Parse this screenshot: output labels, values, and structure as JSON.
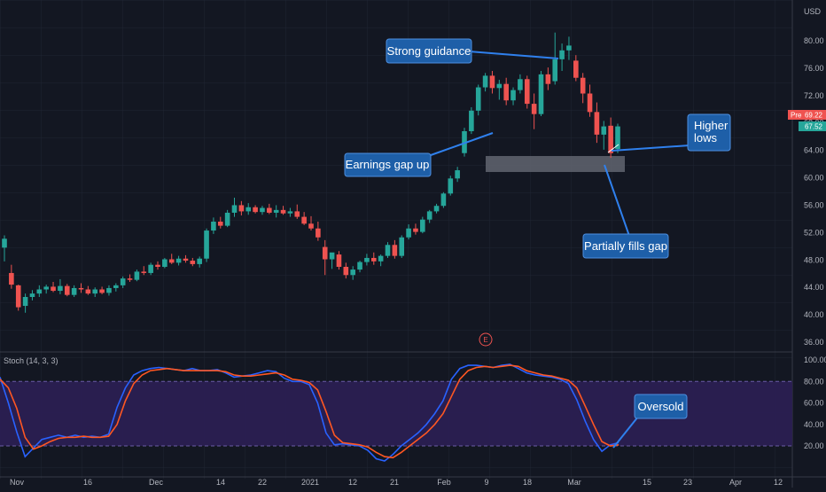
{
  "currency": "USD",
  "chart_data": [
    {
      "type": "candlestick",
      "ylim": [
        34,
        84
      ],
      "yticks": [
        36,
        40,
        44,
        48,
        52,
        56,
        60,
        64,
        68,
        72,
        76,
        80
      ],
      "ytick_labels": [
        "36.00",
        "40.00",
        "44.00",
        "48.00",
        "52.00",
        "56.00",
        "60.00",
        "64.00",
        "68.00",
        "72.00",
        "76.00",
        "80.00"
      ],
      "xtick_labels": [
        "Nov",
        "16",
        "Dec",
        "14",
        "22",
        "2021",
        "12",
        "21",
        "Feb",
        "9",
        "18",
        "Mar",
        "15",
        "23",
        "Apr",
        "12"
      ],
      "price_labels": [
        {
          "tag": "Pre",
          "value": "69.22",
          "color": "#ef5350"
        },
        {
          "value": "67.52",
          "color": "#26a69a"
        }
      ],
      "event_marker": "E",
      "candles": [
        [
          49.8,
          51.6,
          47.8,
          51.1
        ],
        [
          46.1,
          47.3,
          43.8,
          44.4
        ],
        [
          44.3,
          44.4,
          40.6,
          41.1
        ],
        [
          41.3,
          43.1,
          40.3,
          42.6
        ],
        [
          42.6,
          43.6,
          42.1,
          43.1
        ],
        [
          43.1,
          44.3,
          42.6,
          43.7
        ],
        [
          43.7,
          44.4,
          43.1,
          44.1
        ],
        [
          44.1,
          44.8,
          43.3,
          43.5
        ],
        [
          43.5,
          45.2,
          43.0,
          44.2
        ],
        [
          44.2,
          44.5,
          42.7,
          42.9
        ],
        [
          42.9,
          44.3,
          42.6,
          43.9
        ],
        [
          43.9,
          44.6,
          43.2,
          43.7
        ],
        [
          43.7,
          44.2,
          42.9,
          43.1
        ],
        [
          43.1,
          44.0,
          42.6,
          43.7
        ],
        [
          43.7,
          44.1,
          43.0,
          43.2
        ],
        [
          43.2,
          44.3,
          42.8,
          43.9
        ],
        [
          43.9,
          44.6,
          43.4,
          44.3
        ],
        [
          44.3,
          45.6,
          43.9,
          45.3
        ],
        [
          45.3,
          45.9,
          44.8,
          45.1
        ],
        [
          45.1,
          46.6,
          44.9,
          46.3
        ],
        [
          46.3,
          47.1,
          45.8,
          46.1
        ],
        [
          46.1,
          47.6,
          45.8,
          47.3
        ],
        [
          47.3,
          47.8,
          46.6,
          47.0
        ],
        [
          47.0,
          48.3,
          46.8,
          48.1
        ],
        [
          48.1,
          48.9,
          47.4,
          47.6
        ],
        [
          47.6,
          48.6,
          47.2,
          48.2
        ],
        [
          48.2,
          48.7,
          47.6,
          47.9
        ],
        [
          47.9,
          48.3,
          47.1,
          47.4
        ],
        [
          47.4,
          48.5,
          46.9,
          48.2
        ],
        [
          48.2,
          52.6,
          47.7,
          52.3
        ],
        [
          52.3,
          54.2,
          51.8,
          53.6
        ],
        [
          53.6,
          54.3,
          52.6,
          53.0
        ],
        [
          53.0,
          55.3,
          52.8,
          54.9
        ],
        [
          54.9,
          57.1,
          54.3,
          56.0
        ],
        [
          56.0,
          56.6,
          54.5,
          55.1
        ],
        [
          55.1,
          56.3,
          54.6,
          55.7
        ],
        [
          55.7,
          56.0,
          54.8,
          55.0
        ],
        [
          55.0,
          55.9,
          54.6,
          55.6
        ],
        [
          55.6,
          56.2,
          54.7,
          54.9
        ],
        [
          54.9,
          56.0,
          54.2,
          55.3
        ],
        [
          55.3,
          55.9,
          54.6,
          54.8
        ],
        [
          54.8,
          55.6,
          54.3,
          55.1
        ],
        [
          55.1,
          56.1,
          54.0,
          54.3
        ],
        [
          54.3,
          55.0,
          53.1,
          53.3
        ],
        [
          53.3,
          54.4,
          52.3,
          52.6
        ],
        [
          52.6,
          53.6,
          50.8,
          51.3
        ],
        [
          49.9,
          50.9,
          45.8,
          48.1
        ],
        [
          48.1,
          49.0,
          46.7,
          49.1
        ],
        [
          48.8,
          49.3,
          46.6,
          47.0
        ],
        [
          47.0,
          47.6,
          45.3,
          45.8
        ],
        [
          45.8,
          47.1,
          45.1,
          46.6
        ],
        [
          46.6,
          47.9,
          46.2,
          47.7
        ],
        [
          47.7,
          48.9,
          47.2,
          48.3
        ],
        [
          48.3,
          49.1,
          47.3,
          47.8
        ],
        [
          47.8,
          48.8,
          47.1,
          48.6
        ],
        [
          48.6,
          50.6,
          48.3,
          50.2
        ],
        [
          50.2,
          50.9,
          48.2,
          48.6
        ],
        [
          48.6,
          51.6,
          48.3,
          51.3
        ],
        [
          51.3,
          53.2,
          51.0,
          52.6
        ],
        [
          52.6,
          53.3,
          51.7,
          52.1
        ],
        [
          52.1,
          54.3,
          51.9,
          53.9
        ],
        [
          53.9,
          55.3,
          53.4,
          55.1
        ],
        [
          55.1,
          56.2,
          54.8,
          55.9
        ],
        [
          55.9,
          57.9,
          55.6,
          57.7
        ],
        [
          57.7,
          60.3,
          57.4,
          59.9
        ],
        [
          59.9,
          61.6,
          59.4,
          61.1
        ],
        [
          63.6,
          67.3,
          63.1,
          66.8
        ],
        [
          66.8,
          70.3,
          66.4,
          69.8
        ],
        [
          69.8,
          73.6,
          69.1,
          73.2
        ],
        [
          73.2,
          75.3,
          72.6,
          74.9
        ],
        [
          74.9,
          75.6,
          72.3,
          73.1
        ],
        [
          73.1,
          74.3,
          71.4,
          73.7
        ],
        [
          73.7,
          74.6,
          70.6,
          71.3
        ],
        [
          71.3,
          73.2,
          70.6,
          72.8
        ],
        [
          72.8,
          75.1,
          72.3,
          74.4
        ],
        [
          74.4,
          74.9,
          70.1,
          70.8
        ],
        [
          70.8,
          72.3,
          67.1,
          69.3
        ],
        [
          69.3,
          75.6,
          69.0,
          75.1
        ],
        [
          75.1,
          76.1,
          72.8,
          73.7
        ],
        [
          74.1,
          81.2,
          73.6,
          77.3
        ],
        [
          77.3,
          79.6,
          75.6,
          78.6
        ],
        [
          78.6,
          80.6,
          77.2,
          79.3
        ],
        [
          77.1,
          77.9,
          74.1,
          74.6
        ],
        [
          74.6,
          75.3,
          70.9,
          72.3
        ],
        [
          72.3,
          73.6,
          68.9,
          69.6
        ],
        [
          69.6,
          71.0,
          65.1,
          66.3
        ],
        [
          66.3,
          68.3,
          64.1,
          67.5
        ],
        [
          67.6,
          68.8,
          62.9,
          63.6
        ],
        [
          64.2,
          67.9,
          63.6,
          67.5
        ]
      ],
      "annotations": [
        "Strong guidance",
        "Earnings gap up",
        "Higher lows",
        "Partially fills gap"
      ]
    },
    {
      "type": "line",
      "title": "Stoch (14, 3, 3)",
      "ylim": [
        0,
        100
      ],
      "yticks": [
        20,
        40,
        60,
        80,
        100
      ],
      "ytick_labels": [
        "20.00",
        "40.00",
        "60.00",
        "80.00",
        "100.00"
      ],
      "band": [
        20,
        80
      ],
      "series": [
        {
          "color": "#2962ff",
          "values": [
            84,
            60,
            33,
            10,
            18,
            26,
            28,
            30,
            28,
            30,
            28,
            29,
            28,
            31,
            56,
            74,
            86,
            90,
            92,
            93,
            92,
            91,
            90,
            92,
            90,
            90,
            91,
            88,
            84,
            85,
            86,
            88,
            90,
            89,
            83,
            80,
            80,
            77,
            60,
            32,
            21,
            22,
            21,
            20,
            16,
            8,
            6,
            12,
            20,
            26,
            32,
            40,
            50,
            62,
            82,
            92,
            95,
            95,
            94,
            93,
            95,
            96,
            92,
            88,
            86,
            85,
            84,
            82,
            78,
            63,
            43,
            26,
            15,
            21,
            23
          ]
        },
        {
          "color": "#ff5722",
          "values": [
            82,
            74,
            55,
            28,
            17,
            20,
            24,
            27,
            28,
            28,
            29,
            28,
            28,
            29,
            40,
            62,
            78,
            86,
            90,
            91,
            92,
            91,
            90,
            90,
            90,
            90,
            90,
            89,
            86,
            85,
            85,
            86,
            87,
            88,
            86,
            82,
            81,
            79,
            72,
            52,
            30,
            23,
            22,
            21,
            19,
            14,
            10,
            9,
            14,
            20,
            26,
            32,
            40,
            50,
            66,
            82,
            90,
            93,
            94,
            93,
            94,
            95,
            94,
            90,
            88,
            86,
            85,
            83,
            81,
            74,
            57,
            40,
            24,
            20,
            21
          ]
        }
      ],
      "annotations": [
        "Oversold"
      ]
    }
  ]
}
